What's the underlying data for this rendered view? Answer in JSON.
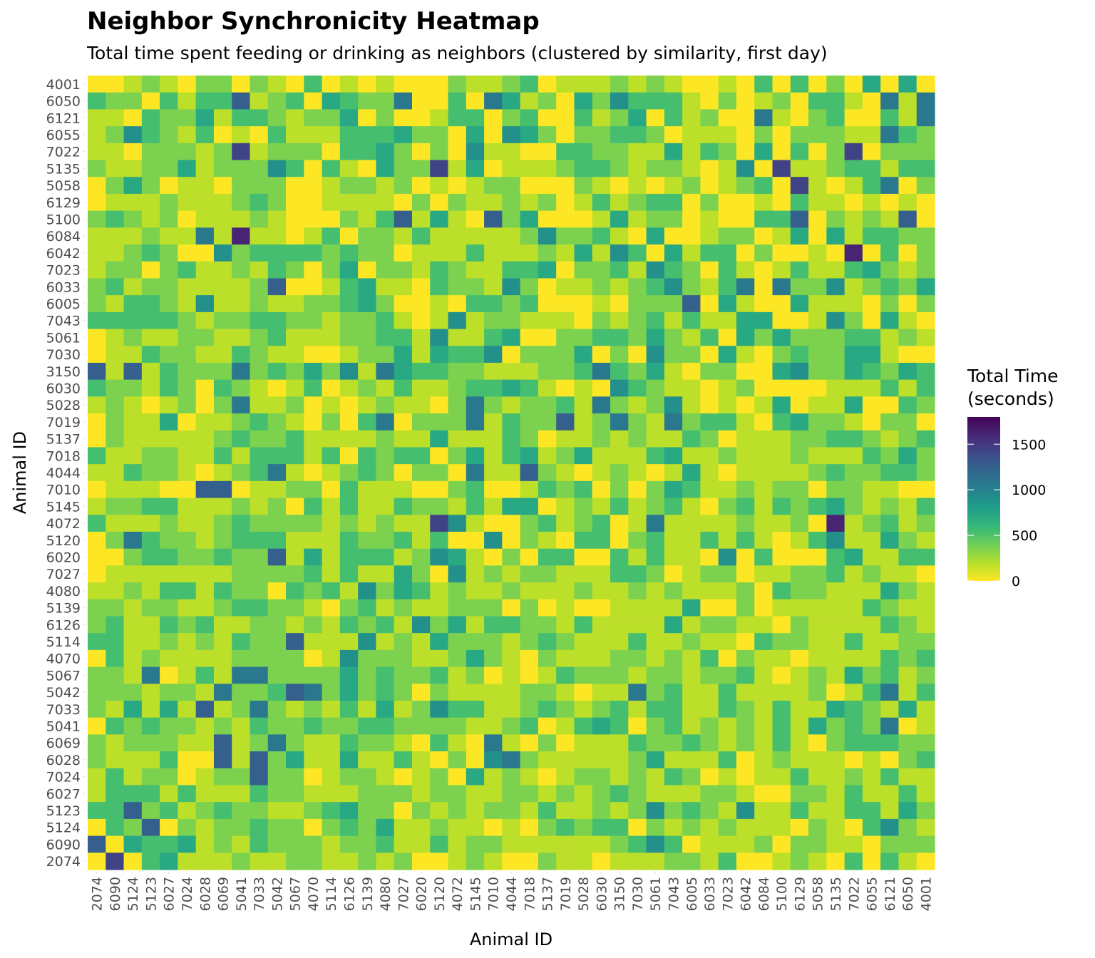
{
  "chart_data": {
    "type": "heatmap",
    "title": "Neighbor Synchronicity Heatmap",
    "subtitle": "Total time spent feeding or drinking as neighbors (clustered by similarity, first day)",
    "xlabel": "Animal ID",
    "ylabel": "Animal ID",
    "x_categories": [
      "2074",
      "6090",
      "5124",
      "5123",
      "6027",
      "7024",
      "6028",
      "6069",
      "5041",
      "7033",
      "5042",
      "5067",
      "4070",
      "5114",
      "6126",
      "5139",
      "4080",
      "7027",
      "6020",
      "5120",
      "4072",
      "5145",
      "7010",
      "4044",
      "7018",
      "5137",
      "7019",
      "5028",
      "6030",
      "3150",
      "7030",
      "5061",
      "7043",
      "6005",
      "6033",
      "7023",
      "6042",
      "6084",
      "5100",
      "6129",
      "5058",
      "5135",
      "7022",
      "6055",
      "6121",
      "6050",
      "4001"
    ],
    "y_categories": [
      "4001",
      "6050",
      "6121",
      "6055",
      "7022",
      "5135",
      "5058",
      "6129",
      "5100",
      "6084",
      "6042",
      "7023",
      "6033",
      "6005",
      "7043",
      "5061",
      "7030",
      "3150",
      "6030",
      "5028",
      "7019",
      "5137",
      "7018",
      "4044",
      "7010",
      "5145",
      "4072",
      "5120",
      "6020",
      "7027",
      "4080",
      "5139",
      "6126",
      "5114",
      "4070",
      "5067",
      "5042",
      "7033",
      "5041",
      "6069",
      "6028",
      "7024",
      "6027",
      "5123",
      "5124",
      "6090",
      "2074"
    ],
    "value_encoding": "each digit d = approx (d*180) seconds",
    "values_coded": [
      "00121022021030101000211230111212100103030204040",
      "32203133712304322600306412042533310201203310616",
      "11032241332122402001330230031240312006102300316",
      "12532130103111333422040542022332011102022211632",
      "11022212812220334202051100332211413204030280222",
      "21122412225303104228140111233212210150811233133",
      "02420110222001221201012200021010120123081013602",
      "01112111232001111020211212013123302001031101010",
      "23212011121000213714107240001412201003370212170",
      "11121161911013022131111125223104001220140413322",
      "11232005233332322011131112141530413302001090302",
      "12202311213202402213211334022315320310131134212",
      "23122111127001341103221520112123521360622512324",
      "21332151121122342001033230001022270410041110202",
      "33333212233221223101512211102123131144001520410",
      "01211221123111223315113400223324213042422233121",
      "01132211321100122414335022240205220410232244100",
      "71713222623242516433221112236324102200452243243",
      "32213203210130121311233431010532110120000111313",
      "12101202611201012110262122316212510101401140032",
      "02114011232102036022261322712621623310342210220",
      "02111112322311112114111320112121132011122332123",
      "31122113133313032330241341241113411211121113242",
      "11322101236101232022061172101210141011112322332",
      "01110077011220311100230013230202431121220221100",
      "12233111212031311322131440121312310231323421213",
      "31112112322221212118510023123016111121120912312",
      "02632212333111322313005021033023113131013511421",
      "00233223227141333125410203300313110503000341133",
      "01111111222231311420512122111332012201122312110",
      "11213313220323152431211211121121211120322111421",
      "22122112332210231211222020100111140020111113211",
      "23113231122121323152413322131111412211021111321",
      "33112121322711151214222123211131121103221131122",
      "03121111222201522211242102111221213021101111323",
      "22160131662222423223120101322212212231012142312",
      "22212216223762423202111122101162311311112013613",
      "21414171262121314125331123212313311321311432141",
      "03232212132232233222211230134302312121314232601",
      "21222117126211322103106102011132232121310233322",
      "21113007172411411310205621111124111301211101023",
      "13122012272201221012041210122121320101131121311",
      "13331311132211122212211221212321112210022131131",
      "33723123221123422021212213112125232151131133142",
      "03270212232202324112110102323302121211102103521",
      "70433412132221223113122111111235301112022110222",
      "08034111211221121200121002110111221300121030310"
    ],
    "colorbar": {
      "title": "Total Time\n(seconds)",
      "title_lines": [
        "Total Time",
        "(seconds)"
      ],
      "ticks": [
        0,
        500,
        1000,
        1500
      ],
      "tick_labels": [
        "0",
        "500",
        "1000",
        "1500"
      ],
      "range": [
        0,
        1800
      ],
      "palette": "viridis (reversed)",
      "colors": [
        "#fde725",
        "#b5de2b",
        "#6ece58",
        "#35b779",
        "#1f9e89",
        "#26828e",
        "#31688e",
        "#3e4989",
        "#482878",
        "#440154"
      ]
    },
    "legend_position": "right",
    "grid": false
  }
}
